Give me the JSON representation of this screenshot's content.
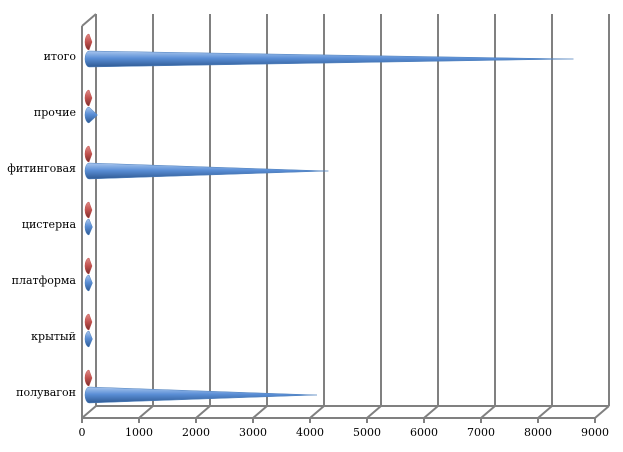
{
  "chart_data": {
    "type": "cone-bar",
    "categories": [
      "полувагон",
      "крытый",
      "платформа",
      "цистерна",
      "фитинговая",
      "прочие",
      "итого"
    ],
    "series": [
      {
        "color": "#c0504d",
        "values": [
          30,
          30,
          30,
          30,
          30,
          30,
          30
        ]
      },
      {
        "color": "#4f81bd",
        "values": [
          4000,
          60,
          60,
          60,
          4200,
          150,
          8500
        ]
      }
    ],
    "xlim": [
      0,
      9000
    ],
    "xticks": [
      0,
      1000,
      2000,
      3000,
      4000,
      5000,
      6000,
      7000,
      8000,
      9000
    ],
    "grid": true
  }
}
